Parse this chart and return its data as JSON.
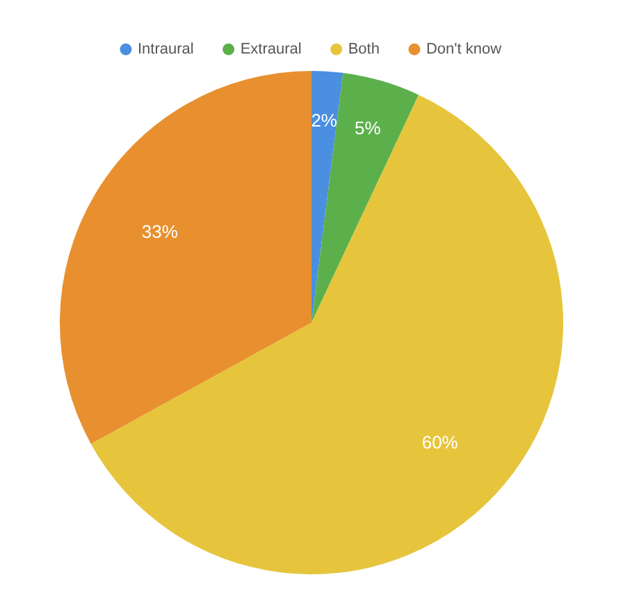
{
  "chart_data": {
    "type": "pie",
    "categories": [
      "Intraural",
      "Extraural",
      "Both",
      "Don't know"
    ],
    "values": [
      2,
      5,
      60,
      33
    ],
    "colors": [
      "#4a8fe0",
      "#5cb04c",
      "#e6c53c",
      "#e8902f"
    ],
    "value_labels": [
      "2%",
      "5%",
      "60%",
      "33%"
    ],
    "legend": "top"
  }
}
